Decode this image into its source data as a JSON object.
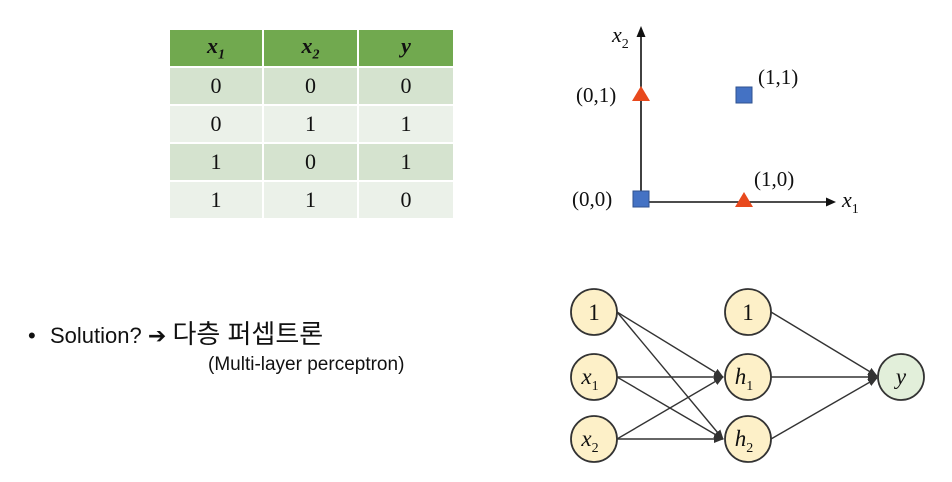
{
  "table": {
    "headers": [
      {
        "base": "x",
        "sub": "1"
      },
      {
        "base": "x",
        "sub": "2"
      },
      {
        "base": "y",
        "sub": ""
      }
    ],
    "rows": [
      [
        "0",
        "0",
        "0"
      ],
      [
        "0",
        "1",
        "1"
      ],
      [
        "1",
        "0",
        "1"
      ],
      [
        "1",
        "1",
        "0"
      ]
    ]
  },
  "plot": {
    "x_axis": {
      "base": "x",
      "sub": "1"
    },
    "y_axis": {
      "base": "x",
      "sub": "2"
    },
    "points": [
      {
        "label": "(0,0)",
        "x": 0,
        "y": 0,
        "marker": "square",
        "class": 0
      },
      {
        "label": "(0,1)",
        "x": 0,
        "y": 1,
        "marker": "triangle",
        "class": 1
      },
      {
        "label": "(1,0)",
        "x": 1,
        "y": 0,
        "marker": "triangle",
        "class": 1
      },
      {
        "label": "(1,1)",
        "x": 1,
        "y": 1,
        "marker": "square",
        "class": 0
      }
    ],
    "colors": {
      "square": "#4472c4",
      "triangle": "#e8491d"
    }
  },
  "bullet": {
    "symbol": "•",
    "text": "Solution?",
    "arrow": "➔",
    "korean": "다층 퍼셉트론",
    "caption": "(Multi-layer perceptron)"
  },
  "network": {
    "input_layer": [
      {
        "base": "1",
        "sub": "",
        "italic": false
      },
      {
        "base": "x",
        "sub": "1",
        "italic": true
      },
      {
        "base": "x",
        "sub": "2",
        "italic": true
      }
    ],
    "hidden_layer": [
      {
        "base": "1",
        "sub": "",
        "italic": false
      },
      {
        "base": "h",
        "sub": "1",
        "italic": true
      },
      {
        "base": "h",
        "sub": "2",
        "italic": true
      }
    ],
    "output_layer": [
      {
        "base": "y",
        "sub": "",
        "italic": true
      }
    ],
    "colors": {
      "node_fill": "#fdf0c8",
      "output_fill": "#e2efda",
      "stroke": "#333333"
    }
  }
}
